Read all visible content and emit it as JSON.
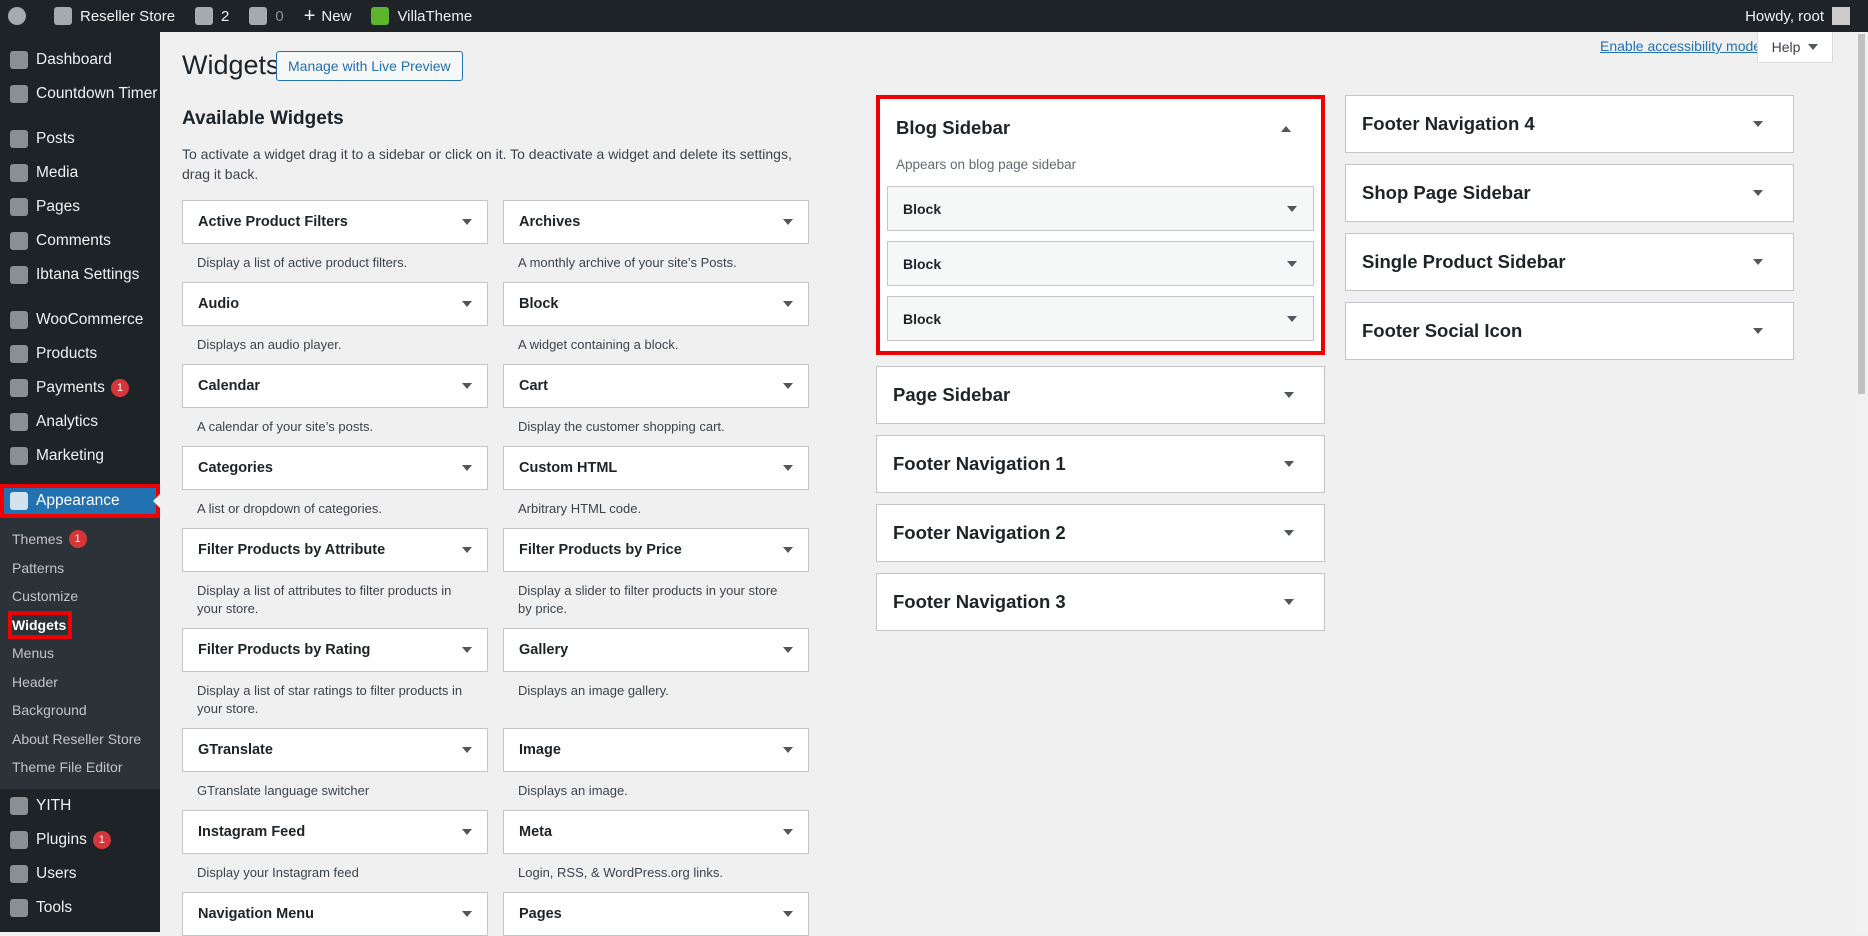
{
  "admin_bar": {
    "site": "Reseller Store",
    "updates": "2",
    "comments": "0",
    "new": "New",
    "theme": "VillaTheme",
    "howdy": "Howdy, root"
  },
  "menu": {
    "groups": [
      [
        {
          "label": "Dashboard"
        },
        {
          "label": "Countdown Timer"
        }
      ],
      [
        {
          "label": "Posts"
        },
        {
          "label": "Media"
        },
        {
          "label": "Pages"
        },
        {
          "label": "Comments"
        },
        {
          "label": "Ibtana Settings"
        }
      ],
      [
        {
          "label": "WooCommerce"
        },
        {
          "label": "Products"
        },
        {
          "label": "Payments",
          "badge": "1"
        },
        {
          "label": "Analytics"
        },
        {
          "label": "Marketing"
        }
      ],
      [
        {
          "label": "Appearance",
          "current": true,
          "highlighted": true,
          "submenu": [
            {
              "label": "Themes",
              "badge": "1"
            },
            {
              "label": "Patterns"
            },
            {
              "label": "Customize"
            },
            {
              "label": "Widgets",
              "current": true,
              "highlighted": true
            },
            {
              "label": "Menus"
            },
            {
              "label": "Header"
            },
            {
              "label": "Background"
            },
            {
              "label": "About Reseller Store"
            },
            {
              "label": "Theme File Editor"
            }
          ]
        },
        {
          "label": "YITH"
        },
        {
          "label": "Plugins",
          "badge": "1"
        },
        {
          "label": "Users"
        },
        {
          "label": "Tools"
        }
      ]
    ]
  },
  "header": {
    "title": "Widgets",
    "button": "Manage with Live Preview",
    "accessibility": "Enable accessibility mode",
    "help": "Help"
  },
  "available": {
    "title": "Available Widgets",
    "description": "To activate a widget drag it to a sidebar or click on it. To deactivate a widget and delete its settings, drag it back.",
    "widgets": [
      {
        "name": "Active Product Filters",
        "desc": "Display a list of active product filters."
      },
      {
        "name": "Archives",
        "desc": "A monthly archive of your site’s Posts."
      },
      {
        "name": "Audio",
        "desc": "Displays an audio player."
      },
      {
        "name": "Block",
        "desc": "A widget containing a block."
      },
      {
        "name": "Calendar",
        "desc": "A calendar of your site’s posts."
      },
      {
        "name": "Cart",
        "desc": "Display the customer shopping cart."
      },
      {
        "name": "Categories",
        "desc": "A list or dropdown of categories."
      },
      {
        "name": "Custom HTML",
        "desc": "Arbitrary HTML code."
      },
      {
        "name": "Filter Products by Attribute",
        "desc": "Display a list of attributes to filter products in your store."
      },
      {
        "name": "Filter Products by Price",
        "desc": "Display a slider to filter products in your store by price."
      },
      {
        "name": "Filter Products by Rating",
        "desc": "Display a list of star ratings to filter products in your store."
      },
      {
        "name": "Gallery",
        "desc": "Displays an image gallery."
      },
      {
        "name": "GTranslate",
        "desc": "GTranslate language switcher"
      },
      {
        "name": "Image",
        "desc": "Displays an image."
      },
      {
        "name": "Instagram Feed",
        "desc": "Display your Instagram feed"
      },
      {
        "name": "Meta",
        "desc": "Login, RSS, & WordPress.org links."
      },
      {
        "name": "Navigation Menu"
      },
      {
        "name": "Pages"
      }
    ]
  },
  "sidebars": {
    "columns": [
      [
        {
          "name": "Blog Sidebar",
          "open": true,
          "highlighted": true,
          "description": "Appears on blog page sidebar",
          "widgets": [
            "Block",
            "Block",
            "Block"
          ]
        },
        {
          "name": "Page Sidebar"
        },
        {
          "name": "Footer Navigation 1"
        },
        {
          "name": "Footer Navigation 2"
        },
        {
          "name": "Footer Navigation 3"
        }
      ],
      [
        {
          "name": "Footer Navigation 4"
        },
        {
          "name": "Shop Page Sidebar"
        },
        {
          "name": "Single Product Sidebar"
        },
        {
          "name": "Footer Social Icon"
        }
      ]
    ]
  }
}
